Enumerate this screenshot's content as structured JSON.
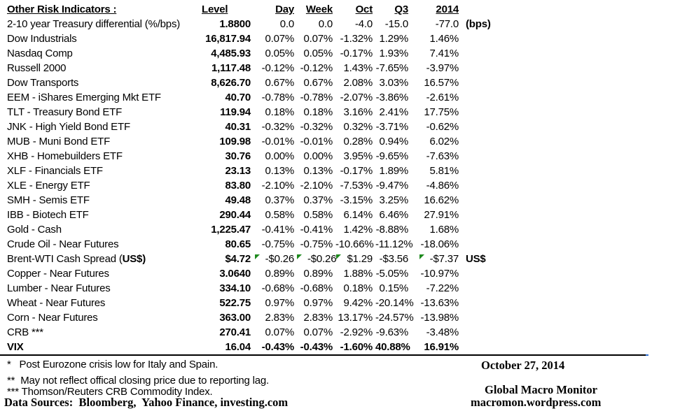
{
  "title": "Other Risk Indicators :",
  "columns": {
    "level": "Level",
    "day": "Day",
    "week": "Week",
    "oct": "Oct",
    "q3": "Q3",
    "y2014": "2014"
  },
  "rows": [
    {
      "label": "2-10 year Treasury differential (%/bps)",
      "level": "1.8800",
      "day": "0.0",
      "week": "0.0",
      "oct": "-4.0",
      "q3": "-15.0",
      "y2014": "-77.0",
      "note": "(bps)"
    },
    {
      "label": "Dow Industrials",
      "level": "16,817.94",
      "day": "0.07%",
      "week": "0.07%",
      "oct": "-1.32%",
      "q3": "1.29%",
      "y2014": "1.46%"
    },
    {
      "label": "Nasdaq Comp",
      "level": "4,485.93",
      "day": "0.05%",
      "week": "0.05%",
      "oct": "-0.17%",
      "q3": "1.93%",
      "y2014": "7.41%"
    },
    {
      "label": "Russell 2000",
      "level": "1,117.48",
      "day": "-0.12%",
      "week": "-0.12%",
      "oct": "1.43%",
      "q3": "-7.65%",
      "y2014": "-3.97%"
    },
    {
      "label": "Dow Transports",
      "level": "8,626.70",
      "day": "0.67%",
      "week": "0.67%",
      "oct": "2.08%",
      "q3": "3.03%",
      "y2014": "16.57%"
    },
    {
      "label": "EEM - iShares Emerging Mkt ETF",
      "level": "40.70",
      "day": "-0.78%",
      "week": "-0.78%",
      "oct": "-2.07%",
      "q3": "-3.86%",
      "y2014": "-2.61%"
    },
    {
      "label": "TLT - Treasury Bond ETF",
      "level": "119.94",
      "day": "0.18%",
      "week": "0.18%",
      "oct": "3.16%",
      "q3": "2.41%",
      "y2014": "17.75%"
    },
    {
      "label": "JNK - High Yield Bond ETF",
      "level": "40.31",
      "day": "-0.32%",
      "week": "-0.32%",
      "oct": "0.32%",
      "q3": "-3.71%",
      "y2014": "-0.62%"
    },
    {
      "label": "MUB - Muni Bond ETF",
      "level": "109.98",
      "day": "-0.01%",
      "week": "-0.01%",
      "oct": "0.28%",
      "q3": "0.94%",
      "y2014": "6.02%"
    },
    {
      "label": "XHB - Homebuilders ETF",
      "level": "30.76",
      "day": "0.00%",
      "week": "0.00%",
      "oct": "3.95%",
      "q3": "-9.65%",
      "y2014": "-7.63%"
    },
    {
      "label": "XLF - Financials ETF",
      "level": "23.13",
      "day": "0.13%",
      "week": "0.13%",
      "oct": "-0.17%",
      "q3": "1.89%",
      "y2014": "5.81%"
    },
    {
      "label": "XLE - Energy ETF",
      "level": "83.80",
      "day": "-2.10%",
      "week": "-2.10%",
      "oct": "-7.53%",
      "q3": "-9.47%",
      "y2014": "-4.86%"
    },
    {
      "label": "SMH - Semis ETF",
      "level": "49.48",
      "day": "0.37%",
      "week": "0.37%",
      "oct": "-3.15%",
      "q3": "3.25%",
      "y2014": "16.62%"
    },
    {
      "label": "IBB - Biotech ETF",
      "level": "290.44",
      "day": "0.58%",
      "week": "0.58%",
      "oct": "6.14%",
      "q3": "6.46%",
      "y2014": "27.91%"
    },
    {
      "label": "Gold - Cash",
      "level": "1,225.47",
      "day": "-0.41%",
      "week": "-0.41%",
      "oct": "1.42%",
      "q3": "-8.88%",
      "y2014": "1.68%"
    },
    {
      "label": "Crude Oil - Near Futures",
      "level": "80.65",
      "day": "-0.75%",
      "week": "-0.75%",
      "oct": "-10.66%",
      "q3": "-11.12%",
      "y2014": "-18.06%"
    },
    {
      "label": "Brent-WTI Cash Spread (",
      "label_bold": "US$)",
      "level": "$4.72",
      "day": "-$0.26",
      "week": "-$0.26",
      "oct": "$1.29",
      "q3": "-$3.56",
      "y2014": "-$7.37",
      "note": "US$",
      "flags": [
        "day",
        "week",
        "oct",
        "y2014"
      ]
    },
    {
      "label": "Copper - Near Futures",
      "level": "3.0640",
      "day": "0.89%",
      "week": "0.89%",
      "oct": "1.88%",
      "q3": "-5.05%",
      "y2014": "-10.97%"
    },
    {
      "label": "Lumber - Near Futures",
      "level": "334.10",
      "day": "-0.68%",
      "week": "-0.68%",
      "oct": "0.18%",
      "q3": "0.15%",
      "y2014": "-7.22%"
    },
    {
      "label": "Wheat - Near Futures",
      "level": "522.75",
      "day": "0.97%",
      "week": "0.97%",
      "oct": "9.42%",
      "q3": "-20.14%",
      "y2014": "-13.63%"
    },
    {
      "label": "Corn - Near Futures",
      "level": "363.00",
      "day": "2.83%",
      "week": "2.83%",
      "oct": "13.17%",
      "q3": "-24.57%",
      "y2014": "-13.98%"
    },
    {
      "label": "CRB ***",
      "level": "270.41",
      "day": "0.07%",
      "week": "0.07%",
      "oct": "-2.92%",
      "q3": "-9.63%",
      "y2014": "-3.48%"
    },
    {
      "label": "VIX",
      "level": "16.04",
      "day": "-0.43%",
      "week": "-0.43%",
      "oct": "-1.60%",
      "q3": "40.88%",
      "y2014": "16.91%",
      "bold": true
    }
  ],
  "footnotes": [
    "*   Post Eurozone crisis low for Italy and Spain.",
    "**  May not reflect offical closing price due to reporting lag.",
    "*** Thomson/Reuters CRB Commodity Index."
  ],
  "data_sources": "Data Sources:  Bloomberg,  Yahoo Finance, investing.com",
  "footer_right": {
    "date": "October 27, 2014",
    "brand": "Global Macro Monitor",
    "site": "macromon.wordpress.com"
  },
  "colors": {
    "flag_green": "#1e8a1e",
    "rule_black": "#000000",
    "rule_tick_blue": "#2f6fd0"
  }
}
